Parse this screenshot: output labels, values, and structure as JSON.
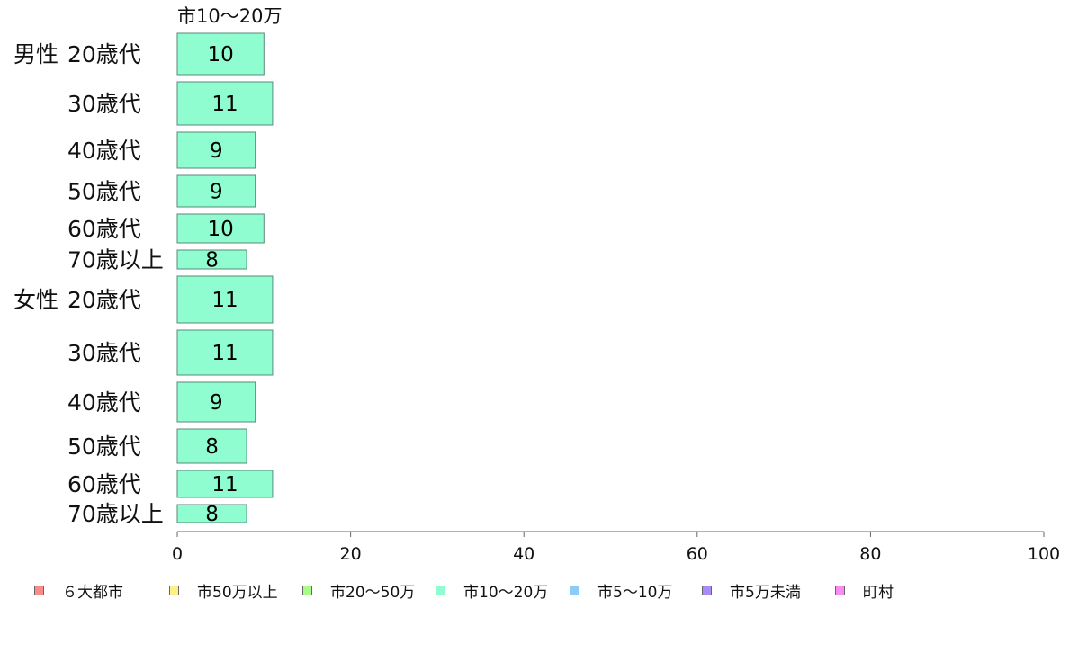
{
  "chart_data": {
    "type": "bar",
    "orientation": "horizontal",
    "column_header": "市10〜20万",
    "groups": [
      {
        "name": "男性",
        "categories": [
          "20歳代",
          "30歳代",
          "40歳代",
          "50歳代",
          "60歳代",
          "70歳以上"
        ]
      },
      {
        "name": "女性",
        "categories": [
          "20歳代",
          "30歳代",
          "40歳代",
          "50歳代",
          "60歳代",
          "70歳以上"
        ]
      }
    ],
    "series": [
      {
        "name": "市10〜20万",
        "color": "#8ffdd0",
        "values": [
          10,
          11,
          9,
          9,
          10,
          8,
          11,
          11,
          9,
          8,
          11,
          8
        ]
      }
    ],
    "xlim": [
      0,
      100
    ],
    "xticks": [
      0,
      20,
      40,
      60,
      80,
      100
    ],
    "legend": {
      "position": "bottom",
      "items": [
        {
          "label": "６大都市",
          "color": "#f88b8b"
        },
        {
          "label": "市50万以上",
          "color": "#fdf08b"
        },
        {
          "label": "市20〜50万",
          "color": "#a9fb8a"
        },
        {
          "label": "市10〜20万",
          "color": "#8ffdd0"
        },
        {
          "label": "市5〜10万",
          "color": "#8dccf8"
        },
        {
          "label": "市5万未満",
          "color": "#a98bf6"
        },
        {
          "label": "町村",
          "color": "#f88bf0"
        }
      ]
    }
  }
}
